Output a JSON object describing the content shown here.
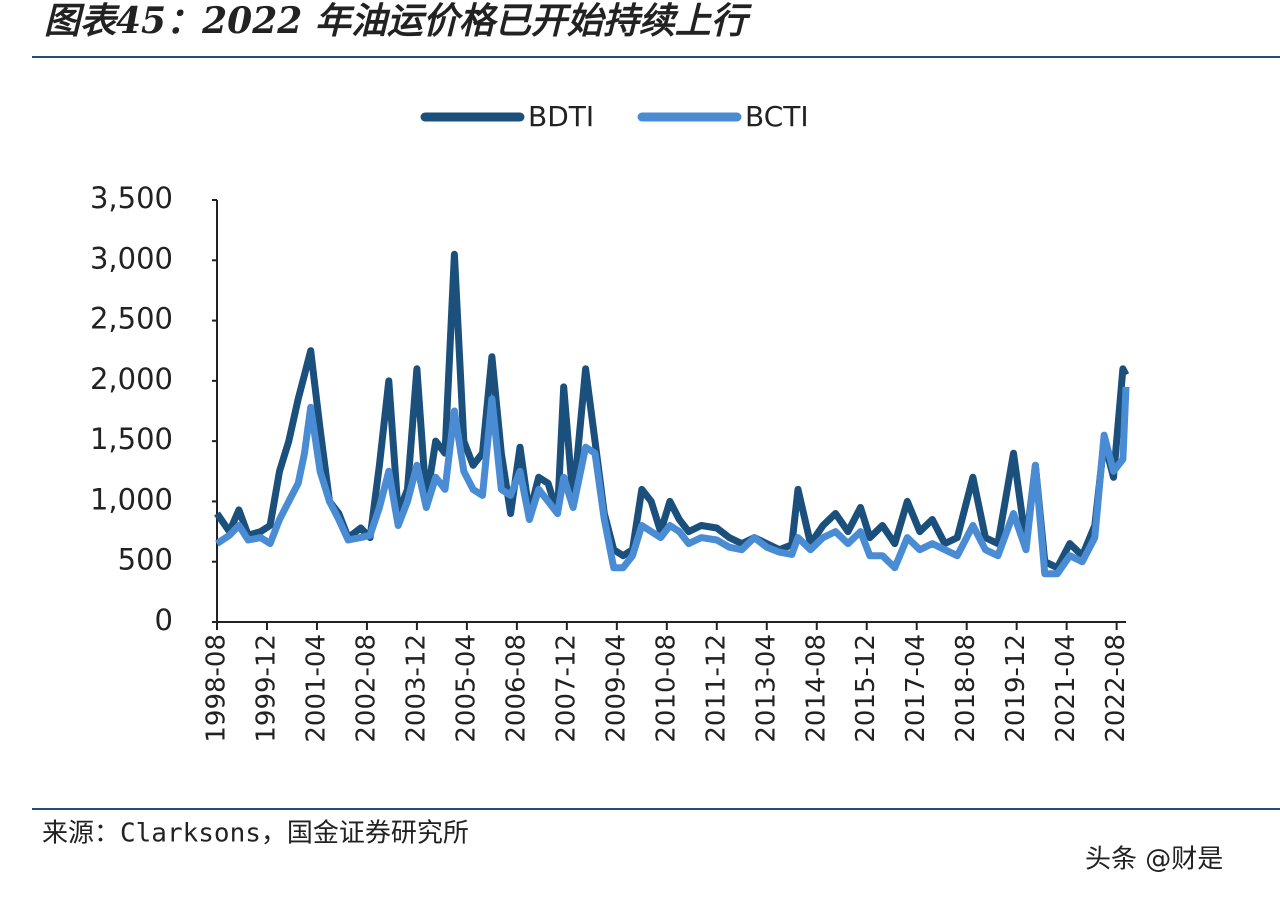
{
  "title": "图表45：2022 年油运价格已开始持续上行",
  "source": "来源：Clarksons，国金证券研究所",
  "watermark": "头条 @财是",
  "chart_data": {
    "type": "line",
    "x": [
      "1998-08",
      "1998-12",
      "1999-03",
      "1999-06",
      "1999-10",
      "2000-01",
      "2000-04",
      "2000-07",
      "2000-10",
      "2000-12",
      "2001-02",
      "2001-05",
      "2001-08",
      "2001-11",
      "2002-02",
      "2002-06",
      "2002-09",
      "2002-12",
      "2003-03",
      "2003-06",
      "2003-09",
      "2003-12",
      "2004-03",
      "2004-06",
      "2004-09",
      "2004-12",
      "2005-03",
      "2005-06",
      "2005-09",
      "2005-12",
      "2006-03",
      "2006-06",
      "2006-09",
      "2006-12",
      "2007-03",
      "2007-06",
      "2007-09",
      "2007-11",
      "2008-02",
      "2008-06",
      "2008-09",
      "2008-12",
      "2009-03",
      "2009-06",
      "2009-09",
      "2009-12",
      "2010-03",
      "2010-06",
      "2010-09",
      "2010-12",
      "2011-03",
      "2011-07",
      "2011-12",
      "2012-04",
      "2012-08",
      "2012-12",
      "2013-04",
      "2013-08",
      "2013-12",
      "2014-02",
      "2014-06",
      "2014-10",
      "2015-02",
      "2015-06",
      "2015-10",
      "2016-01",
      "2016-05",
      "2016-09",
      "2017-01",
      "2017-05",
      "2017-09",
      "2018-01",
      "2018-05",
      "2018-10",
      "2019-02",
      "2019-06",
      "2019-11",
      "2020-03",
      "2020-06",
      "2020-09",
      "2021-01",
      "2021-05",
      "2021-09",
      "2022-01",
      "2022-04",
      "2022-07",
      "2022-10",
      "2022-11"
    ],
    "series": [
      {
        "name": "BDTI",
        "color": "#1b4f7c",
        "values": [
          900,
          750,
          930,
          720,
          750,
          800,
          1250,
          1500,
          1850,
          2050,
          2250,
          1600,
          1000,
          900,
          700,
          780,
          700,
          1300,
          2000,
          900,
          1100,
          2100,
          1000,
          1500,
          1400,
          3050,
          1500,
          1300,
          1400,
          2200,
          1400,
          900,
          1450,
          900,
          1200,
          1150,
          900,
          1950,
          1000,
          2100,
          1500,
          900,
          600,
          550,
          600,
          1100,
          1000,
          750,
          1000,
          850,
          750,
          800,
          780,
          700,
          650,
          700,
          650,
          600,
          640,
          1100,
          650,
          800,
          900,
          750,
          950,
          700,
          800,
          650,
          1000,
          750,
          850,
          650,
          700,
          1200,
          700,
          650,
          1400,
          650,
          1300,
          500,
          450,
          650,
          550,
          800,
          1500,
          1200,
          2100,
          2050
        ]
      },
      {
        "name": "BCTI",
        "color": "#4a8cd4",
        "values": [
          650,
          720,
          800,
          680,
          700,
          650,
          850,
          1000,
          1150,
          1400,
          1780,
          1250,
          1000,
          850,
          680,
          700,
          720,
          950,
          1250,
          800,
          1000,
          1300,
          950,
          1200,
          1100,
          1750,
          1250,
          1100,
          1050,
          1850,
          1100,
          1050,
          1250,
          850,
          1100,
          1000,
          900,
          1200,
          950,
          1450,
          1400,
          850,
          450,
          450,
          550,
          800,
          750,
          700,
          800,
          750,
          650,
          700,
          680,
          620,
          600,
          700,
          620,
          580,
          560,
          700,
          600,
          700,
          750,
          650,
          750,
          550,
          550,
          450,
          700,
          600,
          650,
          600,
          550,
          800,
          600,
          550,
          900,
          600,
          1300,
          400,
          400,
          550,
          500,
          700,
          1550,
          1250,
          1350,
          1950
        ]
      }
    ],
    "xticks": [
      "1998-08",
      "1999-12",
      "2001-04",
      "2002-08",
      "2003-12",
      "2005-04",
      "2006-08",
      "2007-12",
      "2009-04",
      "2010-08",
      "2011-12",
      "2013-04",
      "2014-08",
      "2015-12",
      "2017-04",
      "2018-08",
      "2019-12",
      "2021-04",
      "2022-08"
    ],
    "xlim": [
      "1998-08",
      "2022-11"
    ],
    "ylim": [
      0,
      3500
    ],
    "yticks": [
      0,
      {
        "value": 500,
        "label": "500"
      },
      {
        "value": 1000,
        "label": "1,000"
      },
      {
        "value": 1500,
        "label": "1,500"
      },
      {
        "value": 2000,
        "label": "2,000"
      },
      {
        "value": 2500,
        "label": "2,500"
      },
      {
        "value": 3000,
        "label": "3,000"
      },
      {
        "value": 3500,
        "label": "3,500"
      }
    ],
    "legend": "top"
  }
}
